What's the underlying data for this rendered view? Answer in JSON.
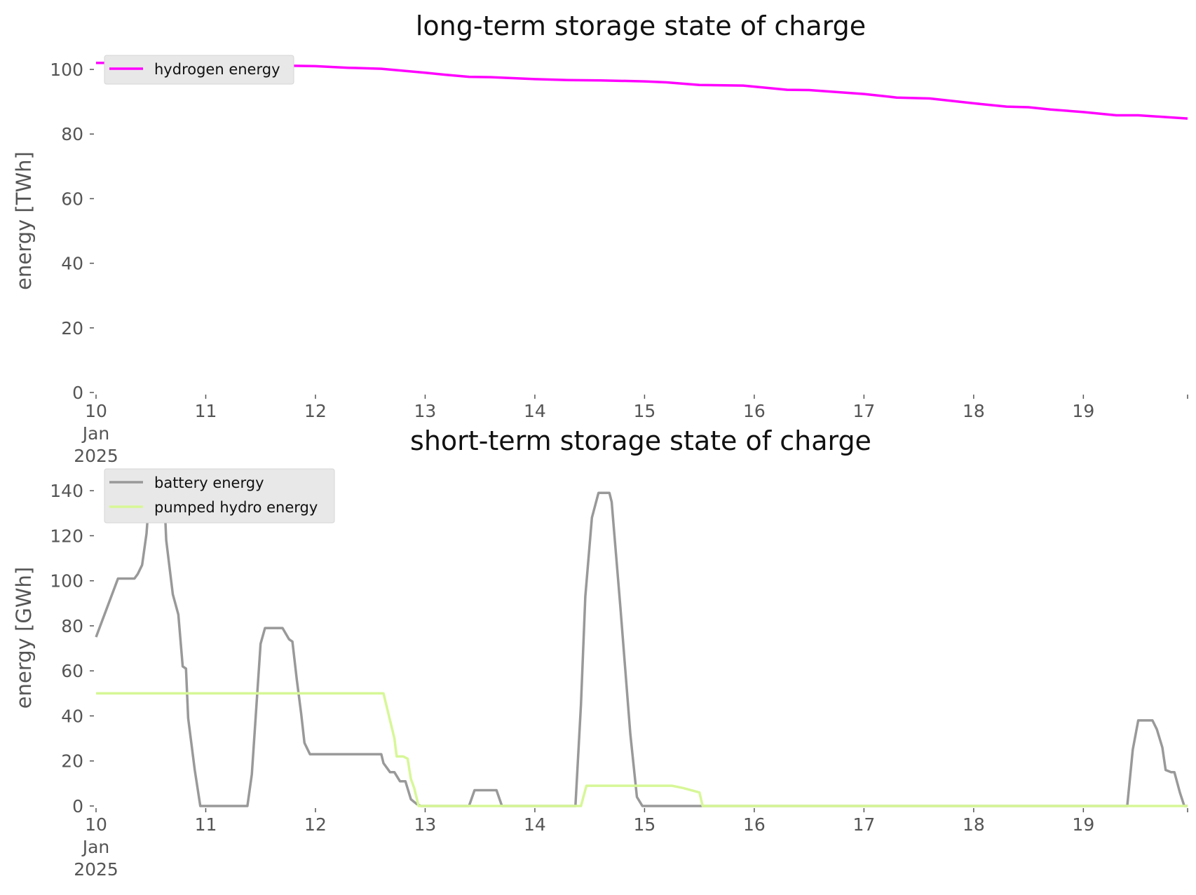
{
  "chart_data": [
    {
      "type": "line",
      "title": "long-term storage state of charge",
      "xlabel": "",
      "ylabel": "energy [TWh]",
      "x_tick_labels": [
        "10\nJan\n2025",
        "11",
        "12",
        "13",
        "14",
        "15",
        "16",
        "17",
        "18",
        "19"
      ],
      "x_tick_days": [
        10,
        11,
        12,
        13,
        14,
        15,
        16,
        17,
        18,
        19
      ],
      "x_range_days": [
        10,
        19.95
      ],
      "y_ticks": [
        0,
        20,
        40,
        60,
        80,
        100
      ],
      "ylim": [
        0,
        105
      ],
      "grid": false,
      "legend_position": "upper-left",
      "series": [
        {
          "name": "hydrogen energy",
          "color": "#ff00ff",
          "x": [
            10.0,
            10.5,
            11.0,
            11.5,
            12.0,
            12.3,
            12.6,
            13.0,
            13.2,
            13.4,
            13.6,
            14.0,
            14.3,
            14.6,
            15.0,
            15.2,
            15.5,
            15.9,
            16.3,
            16.5,
            17.0,
            17.3,
            17.6,
            18.0,
            18.3,
            18.5,
            18.7,
            19.0,
            19.3,
            19.5,
            19.95
          ],
          "y": [
            102,
            102,
            101.5,
            101.3,
            101,
            100.5,
            100.2,
            99,
            98.3,
            97.7,
            97.6,
            97,
            96.7,
            96.6,
            96.3,
            96,
            95.2,
            95,
            93.7,
            93.6,
            92.4,
            91.3,
            91,
            89.5,
            88.5,
            88.3,
            87.6,
            86.8,
            85.8,
            85.8,
            84.8
          ]
        }
      ]
    },
    {
      "type": "line",
      "title": "short-term storage state of charge",
      "xlabel": "",
      "ylabel": "energy [GWh]",
      "x_tick_labels": [
        "10\nJan\n2025",
        "11",
        "12",
        "13",
        "14",
        "15",
        "16",
        "17",
        "18",
        "19"
      ],
      "x_tick_days": [
        10,
        11,
        12,
        13,
        14,
        15,
        16,
        17,
        18,
        19
      ],
      "x_range_days": [
        10,
        19.95
      ],
      "y_ticks": [
        0,
        20,
        40,
        60,
        80,
        100,
        120,
        140
      ],
      "ylim": [
        0,
        150
      ],
      "grid": false,
      "legend_position": "upper-left",
      "series": [
        {
          "name": "battery energy",
          "color": "#999999",
          "x": [
            10.0,
            10.2,
            10.35,
            10.38,
            10.42,
            10.46,
            10.5,
            10.58,
            10.62,
            10.64,
            10.7,
            10.75,
            10.79,
            10.82,
            10.84,
            10.9,
            10.95,
            11.0,
            11.1,
            11.38,
            11.42,
            11.5,
            11.54,
            11.6,
            11.7,
            11.76,
            11.79,
            11.83,
            11.87,
            11.9,
            11.95,
            12.0,
            12.1,
            12.3,
            12.6,
            12.62,
            12.68,
            12.72,
            12.77,
            12.82,
            12.87,
            12.92,
            12.96,
            13.05,
            13.4,
            13.45,
            13.65,
            13.7,
            14.0,
            14.37,
            14.42,
            14.46,
            14.52,
            14.58,
            14.68,
            14.7,
            14.78,
            14.87,
            14.93,
            14.98,
            15.0,
            15.5,
            16.0,
            17.0,
            18.0,
            19.0,
            19.4,
            19.45,
            19.5,
            19.6,
            19.63,
            19.67,
            19.72,
            19.75,
            19.8,
            19.83,
            19.88,
            19.92,
            19.95
          ],
          "y": [
            75,
            101,
            101,
            103,
            107,
            121,
            147,
            147,
            140,
            118,
            94,
            85,
            62,
            61,
            39,
            16,
            0,
            0,
            0,
            0,
            14,
            72,
            79,
            79,
            79,
            74,
            73,
            56,
            41,
            28,
            23,
            23,
            23,
            23,
            23,
            19,
            15,
            15,
            11,
            11,
            3,
            1,
            0,
            0,
            0,
            7,
            7,
            0,
            0,
            0,
            45,
            93,
            128,
            139,
            139,
            135,
            88,
            32,
            4,
            0,
            0,
            0,
            0,
            0,
            0,
            0,
            0,
            25,
            38,
            38,
            38,
            34,
            26,
            16,
            15,
            15,
            6,
            0,
            0
          ]
        },
        {
          "name": "pumped hydro energy",
          "color": "#d7f797",
          "x": [
            10.0,
            11.0,
            12.0,
            12.62,
            12.72,
            12.74,
            12.8,
            12.84,
            12.87,
            12.9,
            12.94,
            13.0,
            13.5,
            14.0,
            14.42,
            14.47,
            15.0,
            15.25,
            15.35,
            15.5,
            15.53,
            16.0,
            17.0,
            18.0,
            19.0,
            19.95
          ],
          "y": [
            50,
            50,
            50,
            50,
            30,
            22,
            22,
            21,
            12,
            8,
            0,
            0,
            0,
            0,
            0,
            9,
            9,
            9,
            8,
            6,
            0,
            0,
            0,
            0,
            0,
            0
          ]
        }
      ]
    }
  ]
}
